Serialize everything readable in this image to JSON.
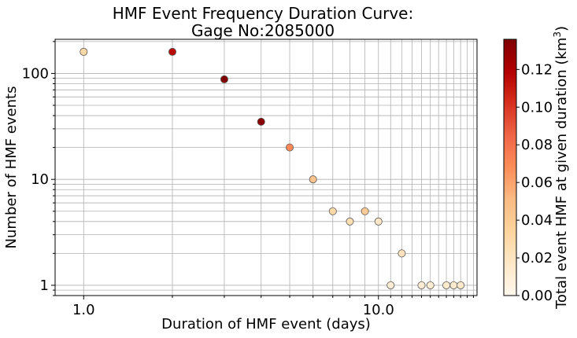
{
  "chart_data": {
    "type": "scatter",
    "title": [
      "HMF Event Frequency Duration Curve:",
      "Gage No:2085000"
    ],
    "xlabel": "Duration of HMF event (days)",
    "ylabel": "Number of HMF events",
    "x_scale": "log",
    "y_scale": "log",
    "xlim": [
      0.8,
      21.6
    ],
    "ylim": [
      0.8,
      210
    ],
    "grid": true,
    "x_tick_labels": [
      {
        "value": 1,
        "label": "1.0"
      },
      {
        "value": 10,
        "label": "10.0"
      }
    ],
    "y_tick_labels": [
      {
        "value": 1,
        "label": "1"
      },
      {
        "value": 10,
        "label": "10"
      },
      {
        "value": 100,
        "label": "100"
      }
    ],
    "colorbar": {
      "label": "Total event HMF at given duration (km",
      "label_sup": "3",
      "label_end": ")",
      "colormap": "OrRd",
      "range": [
        0,
        0.136
      ],
      "ticks": [
        "0.00",
        "0.02",
        "0.04",
        "0.06",
        "0.08",
        "0.10",
        "0.12"
      ],
      "tick_values": [
        0,
        0.02,
        0.04,
        0.06,
        0.08,
        0.1,
        0.12
      ]
    },
    "points": [
      {
        "x": 1,
        "y": 160,
        "c": 0.03
      },
      {
        "x": 2,
        "y": 160,
        "c": 0.115
      },
      {
        "x": 3,
        "y": 88,
        "c": 0.136
      },
      {
        "x": 4,
        "y": 35,
        "c": 0.133
      },
      {
        "x": 5,
        "y": 20,
        "c": 0.07
      },
      {
        "x": 6,
        "y": 10,
        "c": 0.045
      },
      {
        "x": 7,
        "y": 5,
        "c": 0.03
      },
      {
        "x": 8,
        "y": 4,
        "c": 0.025
      },
      {
        "x": 9,
        "y": 5,
        "c": 0.04
      },
      {
        "x": 10,
        "y": 4,
        "c": 0.018
      },
      {
        "x": 11,
        "y": 1,
        "c": 0.012
      },
      {
        "x": 12,
        "y": 2,
        "c": 0.022
      },
      {
        "x": 14,
        "y": 1,
        "c": 0.012
      },
      {
        "x": 15,
        "y": 1,
        "c": 0.012
      },
      {
        "x": 17,
        "y": 1,
        "c": 0.014
      },
      {
        "x": 18,
        "y": 1,
        "c": 0.015
      },
      {
        "x": 19,
        "y": 1,
        "c": 0.016
      }
    ]
  }
}
